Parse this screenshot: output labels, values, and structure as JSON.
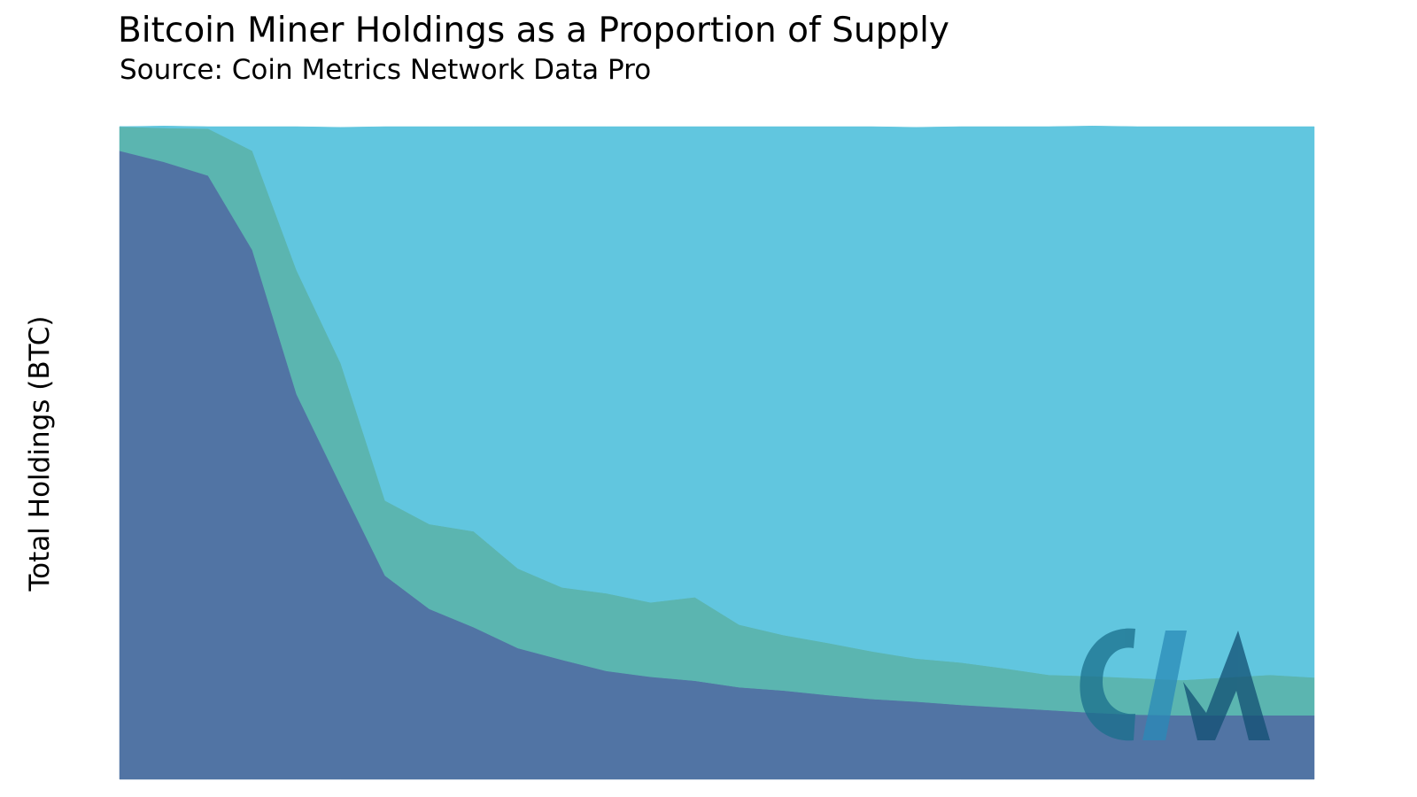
{
  "chart_data": {
    "type": "stacked_area",
    "title": "Bitcoin Miner Holdings as a Proportion of Supply",
    "subtitle": "Source: Coin Metrics Network Data Pro",
    "y_label": "Total Holdings (BTC)",
    "ylim": [
      0,
      100
    ],
    "series": [
      {
        "color": "#5174a4",
        "values": [
          96.3,
          94.6,
          92.5,
          81.1,
          59.0,
          45.0,
          31.2,
          26.1,
          23.3,
          20.1,
          18.3,
          16.6,
          15.7,
          15.1,
          14.1,
          13.6,
          12.9,
          12.3,
          11.9,
          11.4,
          11.0,
          10.6,
          10.2,
          9.9,
          9.8,
          9.8,
          9.8,
          9.8
        ]
      },
      {
        "color": "#5bb5b0",
        "values": [
          3.7,
          5.2,
          7.2,
          15.2,
          19.0,
          18.7,
          11.5,
          13.0,
          14.7,
          12.2,
          11.1,
          11.9,
          11.4,
          12.8,
          9.6,
          8.5,
          8.0,
          7.3,
          6.6,
          6.5,
          6.0,
          5.4,
          5.6,
          5.6,
          5.4,
          5.8,
          6.2,
          5.8
        ]
      },
      {
        "color": "#61c6df",
        "values": [
          0,
          0.3,
          0.3,
          3.7,
          22.0,
          36.2,
          57.3,
          60.9,
          62.0,
          67.7,
          70.6,
          71.5,
          72.9,
          72.1,
          76.3,
          77.9,
          79.1,
          80.4,
          81.4,
          82.1,
          83.0,
          84.0,
          84.3,
          84.5,
          84.8,
          84.4,
          84.0,
          84.4
        ]
      }
    ]
  }
}
